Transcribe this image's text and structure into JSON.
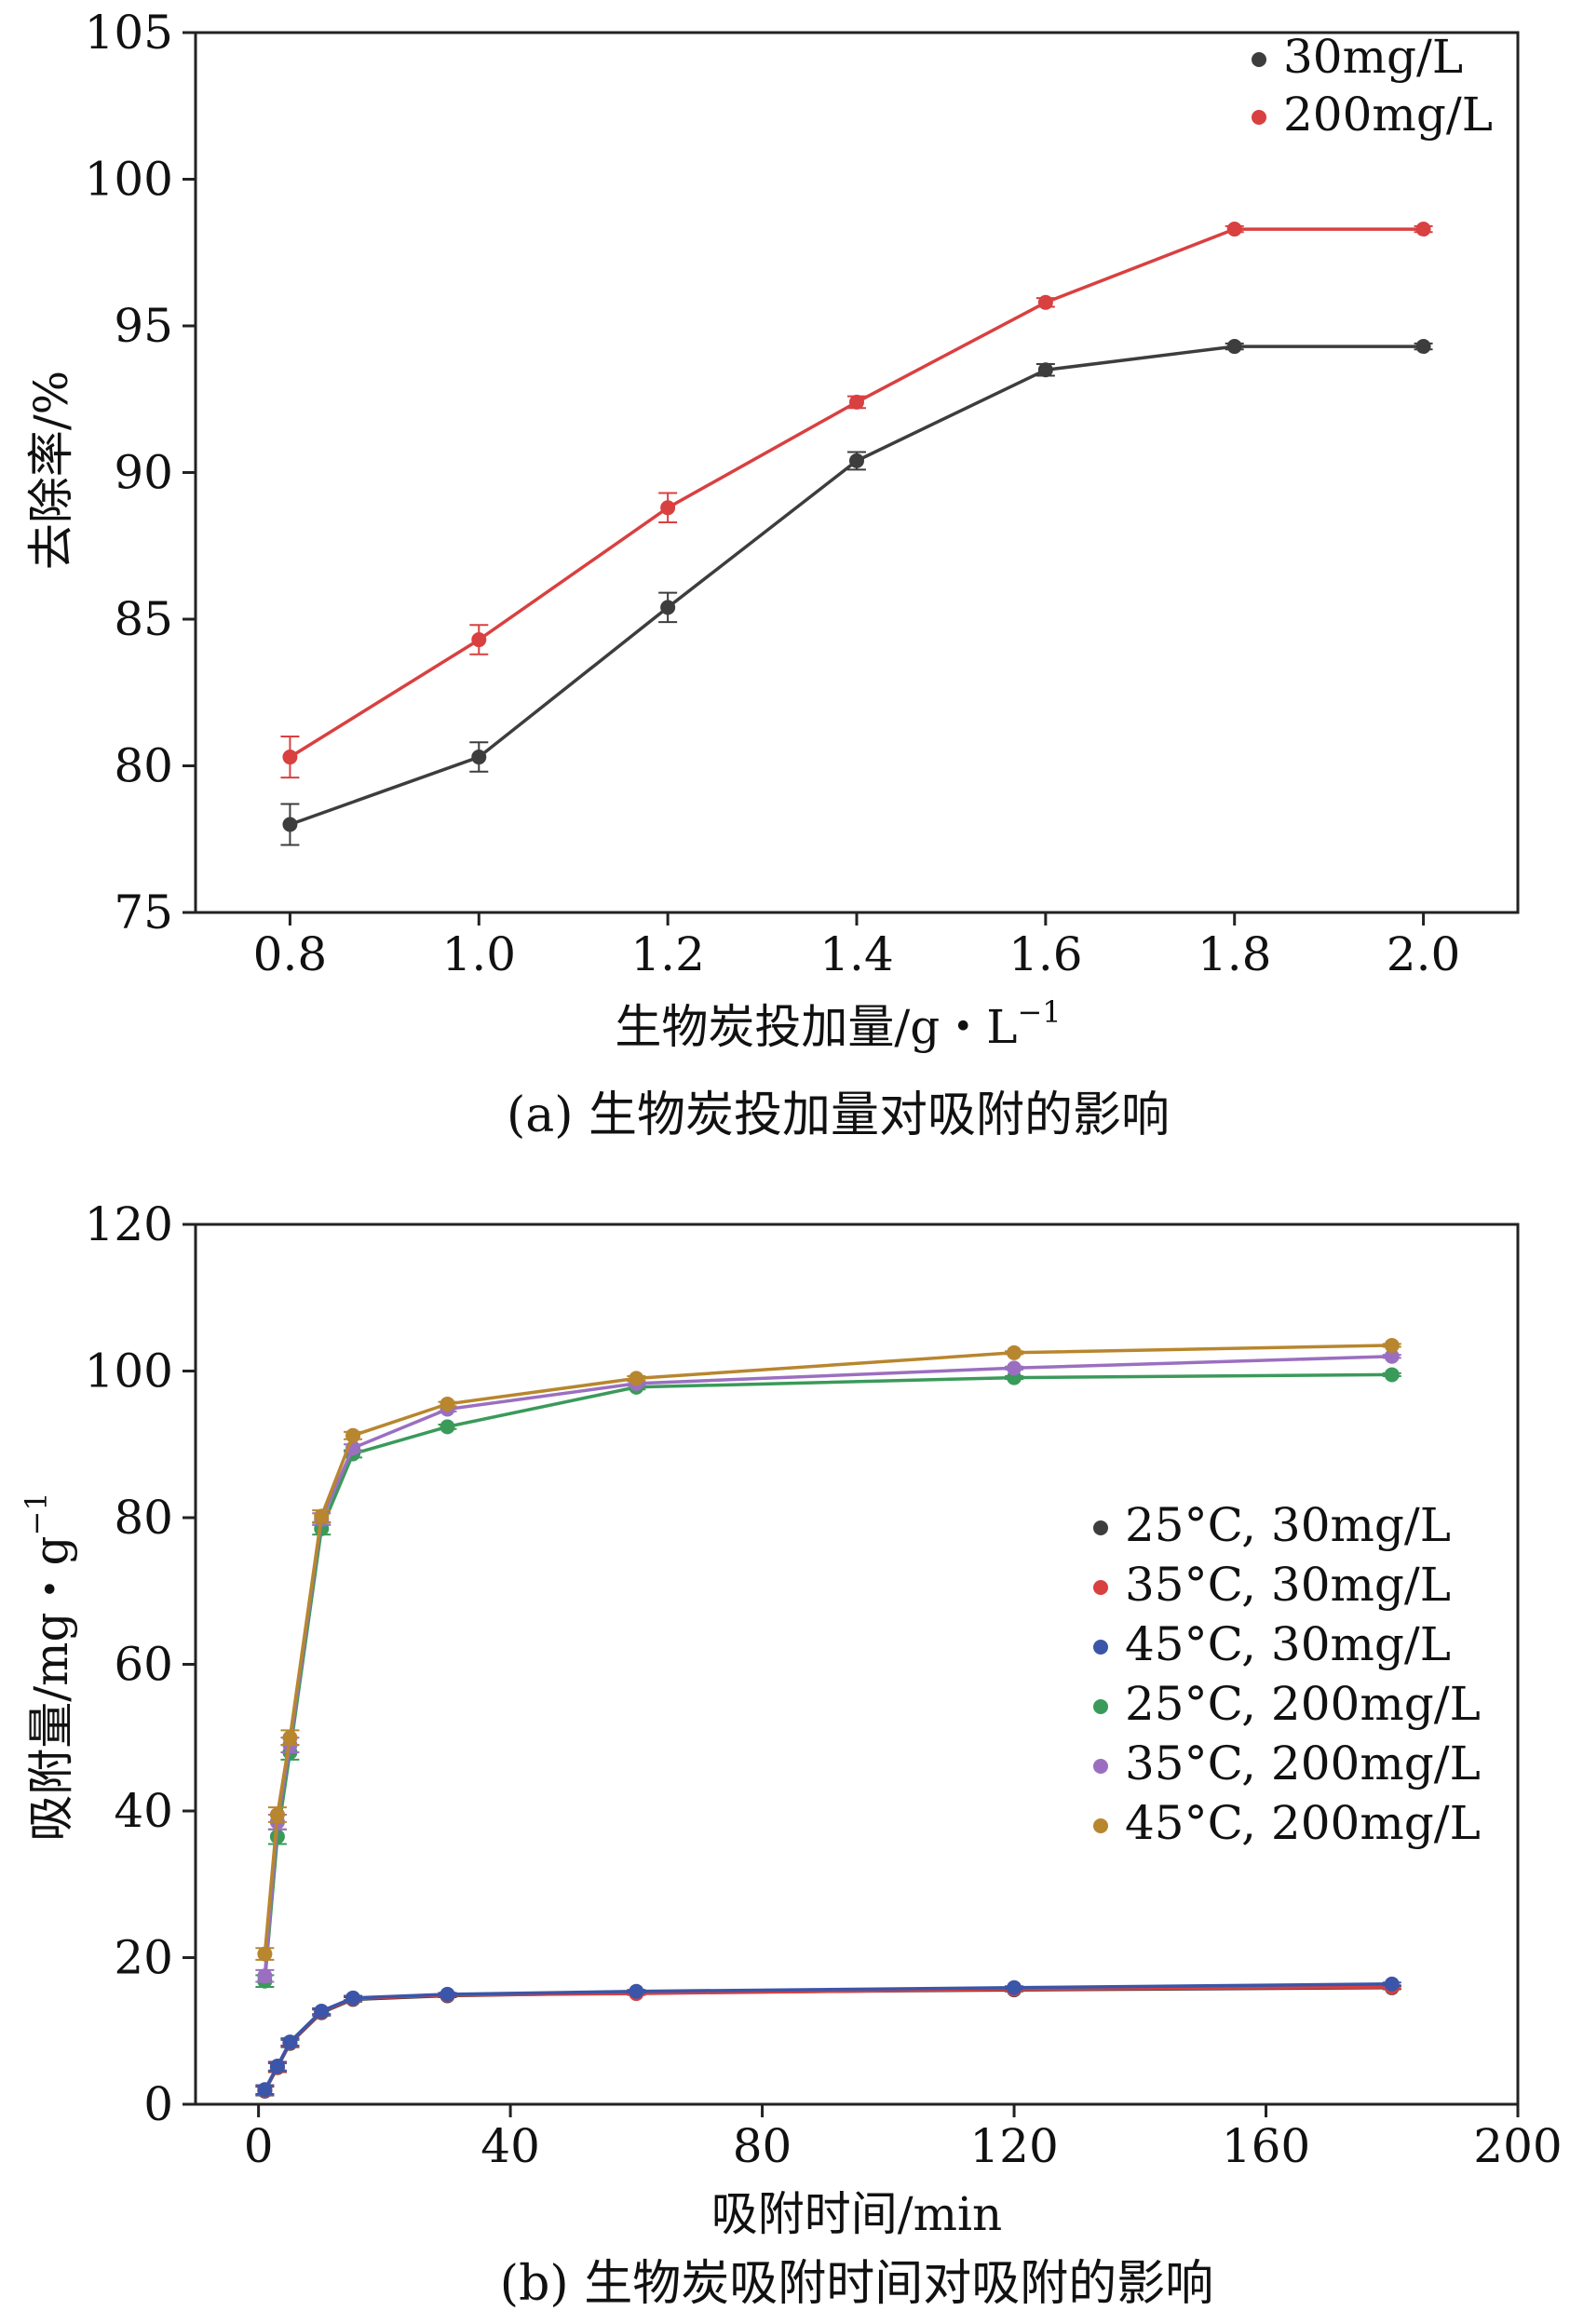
{
  "chart_data": [
    {
      "type": "line",
      "panel": "a",
      "caption": "(a) 生物炭投加量对吸附的影响",
      "xlabel": "生物炭投加量/g・L",
      "xlabel_sup": "−1",
      "ylabel": "去除率/%",
      "xlim": [
        0.7,
        2.1
      ],
      "ylim": [
        75,
        105
      ],
      "xticks": [
        "0.8",
        "1.0",
        "1.2",
        "1.4",
        "1.6",
        "1.8",
        "2.0"
      ],
      "yticks": [
        "75",
        "80",
        "85",
        "90",
        "95",
        "100",
        "105"
      ],
      "legend_position": "top-right",
      "x": [
        0.8,
        1.0,
        1.2,
        1.4,
        1.6,
        1.8,
        2.0
      ],
      "series": [
        {
          "name": "30mg/L",
          "color": "#3d3d3d",
          "values": [
            78.0,
            80.3,
            85.4,
            90.4,
            93.5,
            94.3,
            94.3
          ],
          "errors": [
            0.7,
            0.5,
            0.5,
            0.3,
            0.2,
            0.1,
            0.1
          ]
        },
        {
          "name": "200mg/L",
          "color": "#d94040",
          "values": [
            80.3,
            84.3,
            88.8,
            92.4,
            95.8,
            98.3,
            98.3
          ],
          "errors": [
            0.7,
            0.5,
            0.5,
            0.2,
            0.15,
            0.1,
            0.1
          ]
        }
      ]
    },
    {
      "type": "line",
      "panel": "b",
      "caption": "(b) 生物炭吸附时间对吸附的影响",
      "xlabel": "吸附时间/min",
      "ylabel": "吸附量/mg・g",
      "ylabel_sup": "−1",
      "xlim": [
        -10,
        200
      ],
      "ylim": [
        0,
        120
      ],
      "xticks": [
        "0",
        "40",
        "80",
        "120",
        "160",
        "200"
      ],
      "yticks": [
        "0",
        "20",
        "40",
        "60",
        "80",
        "100",
        "120"
      ],
      "legend_position": "right",
      "x": [
        1,
        3,
        5,
        10,
        15,
        30,
        60,
        120,
        180
      ],
      "series": [
        {
          "name": "25°C, 30mg/L",
          "color": "#3d3d3d",
          "values": [
            1.8,
            5.0,
            8.3,
            12.5,
            14.3,
            14.8,
            15.2,
            15.6,
            15.9
          ],
          "errors": [
            0.6,
            0.6,
            0.5,
            0.4,
            0.3,
            0.2,
            0.2,
            0.2,
            0.2
          ]
        },
        {
          "name": "35°C, 30mg/L",
          "color": "#d94040",
          "values": [
            1.9,
            5.1,
            8.4,
            12.6,
            14.4,
            14.9,
            15.1,
            15.7,
            16.0
          ],
          "errors": [
            0.6,
            0.6,
            0.5,
            0.4,
            0.3,
            0.2,
            0.2,
            0.2,
            0.2
          ]
        },
        {
          "name": "45°C, 30mg/L",
          "color": "#3b55a8",
          "values": [
            2.0,
            5.2,
            8.5,
            12.7,
            14.5,
            15.0,
            15.4,
            15.9,
            16.4
          ],
          "errors": [
            0.6,
            0.6,
            0.5,
            0.4,
            0.3,
            0.2,
            0.2,
            0.2,
            0.2
          ]
        },
        {
          "name": "25°C, 200mg/L",
          "color": "#3a9a5a",
          "values": [
            16.8,
            36.5,
            48.0,
            78.5,
            88.7,
            92.4,
            97.8,
            99.1,
            99.5
          ],
          "errors": [
            0.8,
            1.0,
            1.0,
            0.8,
            0.5,
            0.3,
            0.3,
            0.2,
            0.2
          ]
        },
        {
          "name": "35°C, 200mg/L",
          "color": "#9b6fc0",
          "values": [
            17.5,
            38.5,
            49.0,
            79.8,
            89.5,
            94.8,
            98.3,
            100.4,
            102.0
          ],
          "errors": [
            0.8,
            1.0,
            1.0,
            0.8,
            0.5,
            0.3,
            0.3,
            0.2,
            0.2
          ]
        },
        {
          "name": "45°C, 200mg/L",
          "color": "#b8862e",
          "values": [
            20.5,
            39.5,
            50.0,
            80.2,
            91.2,
            95.5,
            99.0,
            102.5,
            103.5
          ],
          "errors": [
            0.8,
            1.0,
            1.0,
            0.8,
            0.5,
            0.3,
            0.3,
            0.2,
            0.2
          ]
        }
      ]
    }
  ]
}
